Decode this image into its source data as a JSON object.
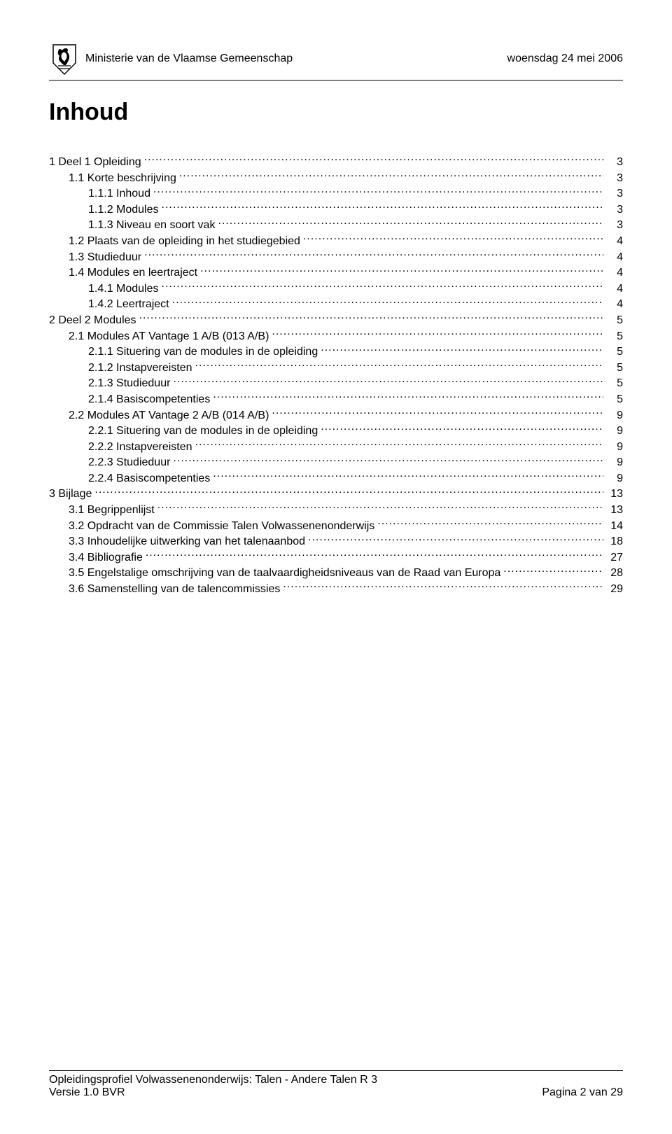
{
  "header": {
    "ministry": "Ministerie van de Vlaamse Gemeenschap",
    "date": "woensdag 24 mei 2006"
  },
  "title": "Inhoud",
  "toc": [
    {
      "indent": 0,
      "label": "1    Deel 1 Opleiding",
      "page": "3"
    },
    {
      "indent": 1,
      "label": "1.1 Korte beschrijving",
      "page": "3"
    },
    {
      "indent": 2,
      "label": "1.1.1    Inhoud",
      "page": "3"
    },
    {
      "indent": 2,
      "label": "1.1.2    Modules",
      "page": "3"
    },
    {
      "indent": 2,
      "label": "1.1.3    Niveau en soort vak",
      "page": "3"
    },
    {
      "indent": 1,
      "label": "1.2 Plaats van de opleiding in het studiegebied",
      "page": "4"
    },
    {
      "indent": 1,
      "label": "1.3 Studieduur",
      "page": "4"
    },
    {
      "indent": 1,
      "label": "1.4 Modules en leertraject",
      "page": "4"
    },
    {
      "indent": 2,
      "label": "1.4.1    Modules",
      "page": "4"
    },
    {
      "indent": 2,
      "label": "1.4.2    Leertraject",
      "page": "4"
    },
    {
      "indent": 0,
      "label": "2    Deel 2 Modules",
      "page": "5"
    },
    {
      "indent": 1,
      "label": "2.1 Modules AT Vantage 1 A/B (013 A/B)",
      "page": "5"
    },
    {
      "indent": 2,
      "label": "2.1.1    Situering van de modules in de opleiding",
      "page": "5"
    },
    {
      "indent": 2,
      "label": "2.1.2    Instapvereisten",
      "page": "5"
    },
    {
      "indent": 2,
      "label": "2.1.3    Studieduur",
      "page": "5"
    },
    {
      "indent": 2,
      "label": "2.1.4    Basiscompetenties",
      "page": "5"
    },
    {
      "indent": 1,
      "label": "2.2 Modules AT Vantage 2 A/B (014 A/B)",
      "page": "9"
    },
    {
      "indent": 2,
      "label": "2.2.1    Situering van de modules in de opleiding",
      "page": "9"
    },
    {
      "indent": 2,
      "label": "2.2.2    Instapvereisten",
      "page": "9"
    },
    {
      "indent": 2,
      "label": "2.2.3    Studieduur",
      "page": "9"
    },
    {
      "indent": 2,
      "label": "2.2.4    Basiscompetenties",
      "page": "9"
    },
    {
      "indent": 0,
      "label": "3    Bijlage",
      "page": "13"
    },
    {
      "indent": 1,
      "label": "3.1 Begrippenlijst",
      "page": "13"
    },
    {
      "indent": 1,
      "label": "3.2 Opdracht van de Commissie Talen Volwassenenonderwijs",
      "page": "14"
    },
    {
      "indent": 1,
      "label": "3.3 Inhoudelijke uitwerking van het talenaanbod",
      "page": "18"
    },
    {
      "indent": 1,
      "label": "3.4 Bibliografie",
      "page": "27"
    },
    {
      "indent": 1,
      "label": "3.5 Engelstalige omschrijving van de taalvaardigheidsniveaus van de Raad van Europa",
      "page": "28"
    },
    {
      "indent": 1,
      "label": "3.6 Samenstelling van de talencommissies",
      "page": "29"
    }
  ],
  "footer": {
    "line1": "Opleidingsprofiel Volwassenenonderwijs: Talen - Andere Talen R 3",
    "version": "Versie 1.0 BVR",
    "page": "Pagina 2 van 29"
  },
  "colors": {
    "text": "#000000",
    "background": "#ffffff",
    "rule": "#000000"
  }
}
